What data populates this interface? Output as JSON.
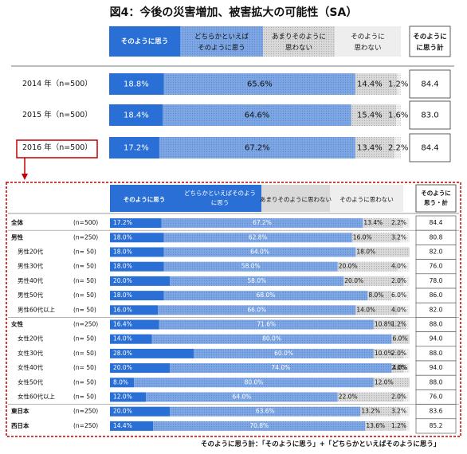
{
  "title": "図4：今後の災害増加、被害拡大の可能性（SA）",
  "legend": {
    "c1": "そのように思う",
    "c2": [
      "どちらかといえば",
      "そのように思う"
    ],
    "c3": [
      "あまりそのように",
      "思わない"
    ],
    "c4": [
      "そのように",
      "思わない"
    ],
    "total": [
      "そのように",
      "に思う計"
    ]
  },
  "legend2": {
    "c1": "そのように思う",
    "c2": [
      "どちらかといえばそのよう",
      "に思う"
    ],
    "c3": "あまりそのように思わない",
    "c4": "そのように思わない",
    "total": [
      "そのように",
      "思う・計"
    ]
  },
  "footnote": "そのように思う計：「そのように思う」+「どちらかといえばそのように思う」",
  "colors": {
    "c1": "#2a6fd6",
    "c2": "#7fa7e3",
    "c3": "#d9d9d9",
    "c4": "#eeeeee",
    "highlight": "#c00000"
  },
  "chart_data": [
    {
      "type": "bar",
      "stacked": true,
      "orientation": "horizontal",
      "title": "図4：今後の災害増加、被害拡大の可能性（SA）",
      "series_names": [
        "そのように思う",
        "どちらかといえばそのように思う",
        "あまりそのように思わない",
        "そのように思わない"
      ],
      "rows": [
        {
          "label": "2014 年（n=500）",
          "values": [
            18.8,
            65.6,
            14.4,
            1.2
          ],
          "total": 84.4
        },
        {
          "label": "2015 年（n=500）",
          "values": [
            18.4,
            64.6,
            15.4,
            1.6
          ],
          "total": 83.0
        },
        {
          "label": "2016 年（n=500）",
          "values": [
            17.2,
            67.2,
            13.4,
            2.2
          ],
          "total": 84.4
        }
      ]
    },
    {
      "type": "bar",
      "stacked": true,
      "orientation": "horizontal",
      "series_names": [
        "そのように思う",
        "どちらかといえばそのように思う",
        "あまりそのように思わない",
        "そのように思わない"
      ],
      "rows": [
        {
          "label": "全体",
          "n": "(n=500)",
          "values": [
            17.2,
            67.2,
            13.4,
            2.2
          ],
          "total": 84.4,
          "group": true
        },
        {
          "label": "男性",
          "n": "(n=250)",
          "values": [
            18.0,
            62.8,
            16.0,
            3.2
          ],
          "total": 80.8,
          "group": true
        },
        {
          "label": "男性20代",
          "n": "(n=  50)",
          "values": [
            18.0,
            64.0,
            18.0,
            0
          ],
          "total": 82.0
        },
        {
          "label": "男性30代",
          "n": "(n=  50)",
          "values": [
            18.0,
            58.0,
            20.0,
            4.0
          ],
          "total": 76.0
        },
        {
          "label": "男性40代",
          "n": "(n=  50)",
          "values": [
            20.0,
            58.0,
            20.0,
            2.0
          ],
          "total": 78.0
        },
        {
          "label": "男性50代",
          "n": "(n=  50)",
          "values": [
            18.0,
            68.0,
            8.0,
            6.0
          ],
          "total": 86.0
        },
        {
          "label": "男性60代以上",
          "n": "(n=  50)",
          "values": [
            16.0,
            66.0,
            14.0,
            4.0
          ],
          "total": 82.0
        },
        {
          "label": "女性",
          "n": "(n=250)",
          "values": [
            16.4,
            71.6,
            10.8,
            1.2
          ],
          "total": 88.0,
          "group": true
        },
        {
          "label": "女性20代",
          "n": "(n=  50)",
          "values": [
            14.0,
            80.0,
            6.0,
            0
          ],
          "total": 94.0
        },
        {
          "label": "女性30代",
          "n": "(n=  50)",
          "values": [
            28.0,
            60.0,
            10.0,
            2.0
          ],
          "total": 88.0
        },
        {
          "label": "女性40代",
          "n": "(n=  50)",
          "values": [
            20.0,
            74.0,
            4.0,
            2.0
          ],
          "total": 94.0
        },
        {
          "label": "女性50代",
          "n": "(n=  50)",
          "values": [
            8.0,
            80.0,
            12.0,
            0
          ],
          "total": 88.0
        },
        {
          "label": "女性60代以上",
          "n": "(n=  50)",
          "values": [
            12.0,
            64.0,
            22.0,
            2.0
          ],
          "total": 76.0
        },
        {
          "label": "東日本",
          "n": "(n=250)",
          "values": [
            20.0,
            63.6,
            13.2,
            3.2
          ],
          "total": 83.6,
          "group": true
        },
        {
          "label": "西日本",
          "n": "(n=250)",
          "values": [
            14.4,
            70.8,
            13.6,
            1.2
          ],
          "total": 85.2,
          "group": true
        }
      ]
    }
  ]
}
